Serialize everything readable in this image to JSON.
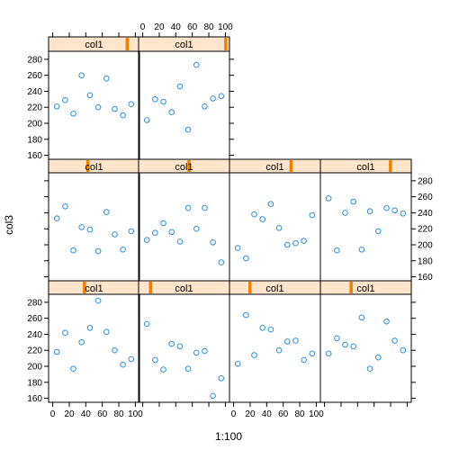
{
  "chart_data": {
    "type": "scatter",
    "layout": "lattice 4 columns x 3 rows (bottom row first), 10 panels",
    "xlabel": "1:100",
    "ylabel": "col3",
    "xlim": [
      -5,
      105
    ],
    "ylim": [
      155,
      290
    ],
    "x_ticks": [
      0,
      20,
      40,
      60,
      80,
      100
    ],
    "y_ticks": [
      160,
      180,
      200,
      220,
      240,
      260,
      280
    ],
    "strip_label": "col1",
    "colors": {
      "point": "#2b8fd6",
      "strip_bg": "#ffe5cc",
      "strip_marker": "#f08000",
      "frame": "#000000"
    },
    "panels": [
      {
        "row": 1,
        "col": 1,
        "strip_label": "col1",
        "strip_level": 0.38,
        "x": [
          5,
          15,
          25,
          35,
          45,
          55,
          65,
          75,
          85,
          95
        ],
        "y": [
          218,
          242,
          197,
          230,
          248,
          282,
          243,
          220,
          202,
          209
        ]
      },
      {
        "row": 1,
        "col": 2,
        "strip_label": "col1",
        "strip_level": 0.1,
        "x": [
          5,
          15,
          25,
          35,
          45,
          55,
          65,
          75,
          85,
          95
        ],
        "y": [
          253,
          208,
          196,
          228,
          225,
          197,
          217,
          219,
          163,
          185
        ]
      },
      {
        "row": 1,
        "col": 3,
        "strip_label": "col1",
        "strip_level": 0.2,
        "x": [
          5,
          15,
          25,
          35,
          45,
          55,
          65,
          75,
          85,
          95
        ],
        "y": [
          203,
          264,
          214,
          248,
          246,
          220,
          231,
          232,
          208,
          216
        ]
      },
      {
        "row": 1,
        "col": 4,
        "strip_label": "col1",
        "strip_level": 0.32,
        "x": [
          5,
          15,
          25,
          35,
          45,
          55,
          65,
          75,
          85,
          95
        ],
        "y": [
          216,
          235,
          227,
          225,
          261,
          197,
          211,
          256,
          232,
          220
        ]
      },
      {
        "row": 2,
        "col": 1,
        "strip_label": "col1",
        "strip_level": 0.42,
        "x": [
          5,
          15,
          25,
          35,
          45,
          55,
          65,
          75,
          85,
          95
        ],
        "y": [
          233,
          248,
          193,
          222,
          219,
          192,
          241,
          213,
          194,
          217
        ]
      },
      {
        "row": 2,
        "col": 2,
        "strip_label": "col1",
        "strip_level": 0.55,
        "x": [
          5,
          15,
          25,
          35,
          45,
          55,
          65,
          75,
          85,
          95
        ],
        "y": [
          206,
          215,
          227,
          216,
          204,
          246,
          220,
          246,
          203,
          178
        ]
      },
      {
        "row": 2,
        "col": 3,
        "strip_label": "col1",
        "strip_level": 0.68,
        "x": [
          5,
          15,
          25,
          35,
          45,
          55,
          65,
          75,
          85,
          95
        ],
        "y": [
          196,
          183,
          238,
          232,
          251,
          221,
          200,
          202,
          205,
          237
        ]
      },
      {
        "row": 2,
        "col": 4,
        "strip_label": "col1",
        "strip_level": 0.78,
        "x": [
          5,
          15,
          25,
          35,
          45,
          55,
          65,
          75,
          85,
          95
        ],
        "y": [
          258,
          193,
          240,
          254,
          194,
          242,
          217,
          246,
          243,
          239
        ]
      },
      {
        "row": 3,
        "col": 1,
        "strip_label": "col1",
        "strip_level": 0.88,
        "x": [
          5,
          15,
          25,
          35,
          45,
          55,
          65,
          75,
          85,
          95
        ],
        "y": [
          221,
          229,
          212,
          260,
          235,
          220,
          256,
          218,
          210,
          224
        ]
      },
      {
        "row": 3,
        "col": 2,
        "strip_label": "col1",
        "strip_level": 0.98,
        "x": [
          5,
          15,
          25,
          35,
          45,
          55,
          65,
          75,
          85,
          95
        ],
        "y": [
          204,
          230,
          227,
          214,
          246,
          192,
          273,
          221,
          231,
          234
        ]
      }
    ]
  }
}
